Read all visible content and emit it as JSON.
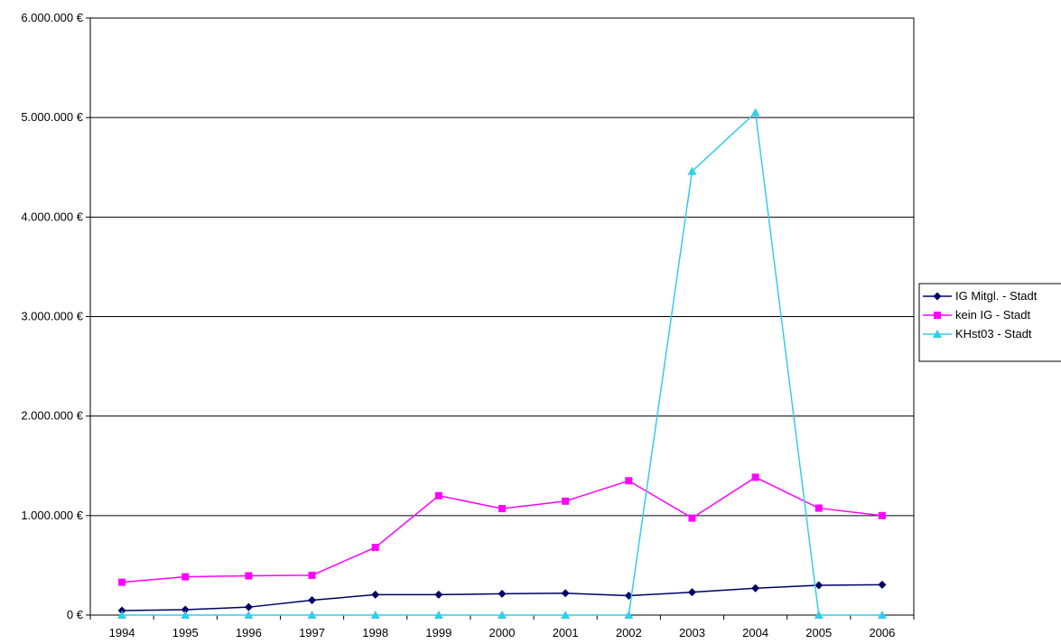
{
  "chart_data": {
    "type": "line",
    "categories": [
      "1994",
      "1995",
      "1996",
      "1997",
      "1998",
      "1999",
      "2000",
      "2001",
      "2002",
      "2003",
      "2004",
      "2005",
      "2006"
    ],
    "ylim": [
      0,
      6000000
    ],
    "y_ticks": [
      0,
      1000000,
      2000000,
      3000000,
      4000000,
      5000000,
      6000000
    ],
    "y_tick_labels": [
      "0 €",
      "1.000.000 €",
      "2.000.000 €",
      "3.000.000 €",
      "4.000.000 €",
      "5.000.000 €",
      "6.000.000 €"
    ],
    "grid": "horizontal",
    "legend_position": "right",
    "series": [
      {
        "name": "IG Mitgl. - Stadt",
        "color": "#000066",
        "marker": "diamond",
        "values": [
          45000,
          55000,
          80000,
          150000,
          205000,
          205000,
          215000,
          220000,
          195000,
          230000,
          270000,
          300000,
          305000
        ]
      },
      {
        "name": "kein IG - Stadt",
        "color": "#ff00ff",
        "marker": "square",
        "values": [
          330000,
          385000,
          395000,
          400000,
          680000,
          1200000,
          1070000,
          1145000,
          1350000,
          975000,
          1385000,
          1075000,
          1000000
        ]
      },
      {
        "name": "KHst03 - Stadt",
        "color": "#33ccee",
        "marker": "triangle",
        "values": [
          0,
          0,
          0,
          0,
          0,
          0,
          0,
          0,
          0,
          4460000,
          5050000,
          0,
          0
        ]
      }
    ]
  }
}
